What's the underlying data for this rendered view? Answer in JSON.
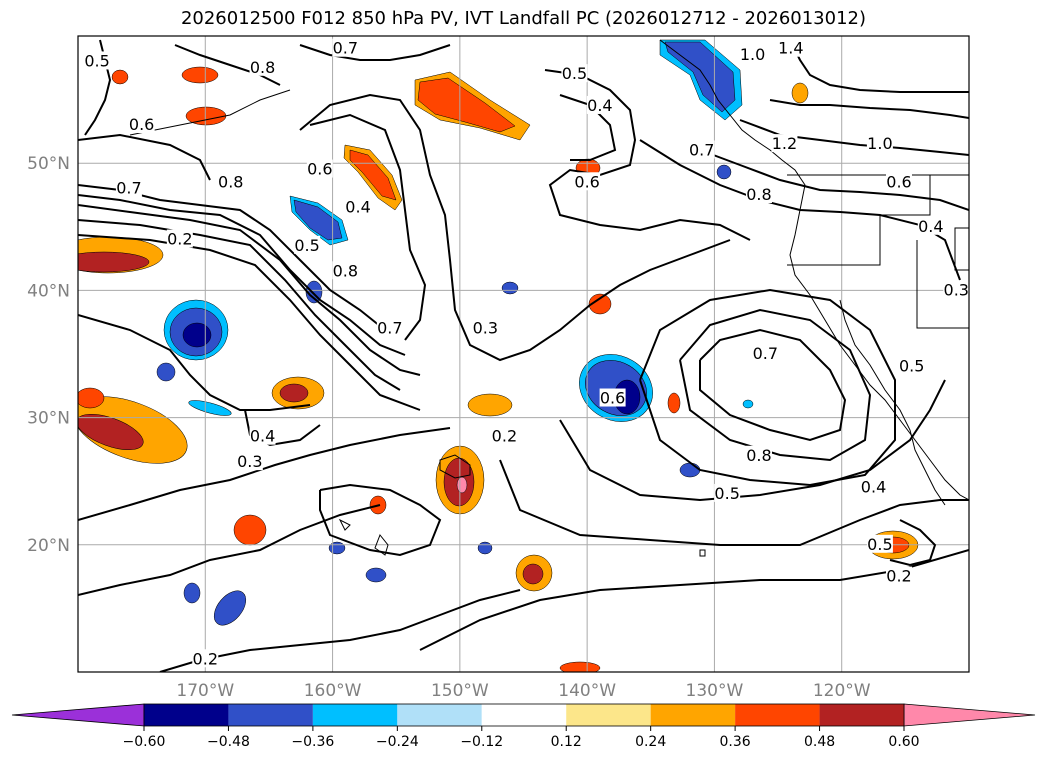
{
  "title": "2026012500 F012 850 hPa PV, IVT Landfall PC (2026012712 - 2026013012)",
  "map": {
    "lon_range": [
      -180,
      -110
    ],
    "lat_range": [
      10,
      60
    ],
    "lon_ticks": [
      {
        "lon": -170,
        "label": "170°W"
      },
      {
        "lon": -160,
        "label": "160°W"
      },
      {
        "lon": -150,
        "label": "150°W"
      },
      {
        "lon": -140,
        "label": "140°W"
      },
      {
        "lon": -130,
        "label": "130°W"
      },
      {
        "lon": -120,
        "label": "120°W"
      }
    ],
    "lat_ticks": [
      {
        "lat": 20,
        "label": "20°N"
      },
      {
        "lat": 30,
        "label": "30°N"
      },
      {
        "lat": 40,
        "label": "40°N"
      },
      {
        "lat": 50,
        "label": "50°N"
      }
    ],
    "grid": true,
    "contour_labels": [
      {
        "lon": -178.5,
        "lat": 58,
        "text": "0.5"
      },
      {
        "lon": -175,
        "lat": 53,
        "text": "0.6"
      },
      {
        "lon": -176,
        "lat": 48,
        "text": "0.7"
      },
      {
        "lon": -172,
        "lat": 44,
        "text": "0.2"
      },
      {
        "lon": -168,
        "lat": 48.5,
        "text": "0.8"
      },
      {
        "lon": -165.5,
        "lat": 57.5,
        "text": "0.8"
      },
      {
        "lon": -159,
        "lat": 59,
        "text": "0.7"
      },
      {
        "lon": -161,
        "lat": 49.5,
        "text": "0.6"
      },
      {
        "lon": -158,
        "lat": 46.5,
        "text": "0.4"
      },
      {
        "lon": -162,
        "lat": 43.5,
        "text": "0.5"
      },
      {
        "lon": -159,
        "lat": 41.5,
        "text": "0.8"
      },
      {
        "lon": -155.5,
        "lat": 37,
        "text": "0.7"
      },
      {
        "lon": -148,
        "lat": 37,
        "text": "0.3"
      },
      {
        "lon": -165.5,
        "lat": 28.5,
        "text": "0.4"
      },
      {
        "lon": -166.5,
        "lat": 26.5,
        "text": "0.3"
      },
      {
        "lon": -146.5,
        "lat": 28.5,
        "text": "0.2"
      },
      {
        "lon": -141,
        "lat": 57,
        "text": "0.5"
      },
      {
        "lon": -139,
        "lat": 54.5,
        "text": "0.4"
      },
      {
        "lon": -140,
        "lat": 48.5,
        "text": "0.6"
      },
      {
        "lon": -138,
        "lat": 31.5,
        "text": "0.6"
      },
      {
        "lon": -131,
        "lat": 51,
        "text": "0.7"
      },
      {
        "lon": -127,
        "lat": 58.5,
        "text": "1.0"
      },
      {
        "lon": -124,
        "lat": 59,
        "text": "1.4"
      },
      {
        "lon": -124.5,
        "lat": 51.5,
        "text": "1.2"
      },
      {
        "lon": -126.5,
        "lat": 47.5,
        "text": "0.8"
      },
      {
        "lon": -117,
        "lat": 51.5,
        "text": "1.0"
      },
      {
        "lon": -115.5,
        "lat": 48.5,
        "text": "0.6"
      },
      {
        "lon": -113,
        "lat": 45,
        "text": "0.4"
      },
      {
        "lon": -111,
        "lat": 40,
        "text": "0.3"
      },
      {
        "lon": -114.5,
        "lat": 34,
        "text": "0.5"
      },
      {
        "lon": -126,
        "lat": 35,
        "text": "0.7"
      },
      {
        "lon": -126.5,
        "lat": 27,
        "text": "0.8"
      },
      {
        "lon": -129,
        "lat": 24,
        "text": "0.5"
      },
      {
        "lon": -117.5,
        "lat": 24.5,
        "text": "0.4"
      },
      {
        "lon": -117,
        "lat": 20,
        "text": "0.5"
      },
      {
        "lon": -115.5,
        "lat": 17.5,
        "text": "0.2"
      },
      {
        "lon": -170,
        "lat": 11,
        "text": "0.2"
      }
    ]
  },
  "colorbar": {
    "ticks": [
      "−0.60",
      "−0.48",
      "−0.36",
      "−0.24",
      "−0.12",
      "0.12",
      "0.24",
      "0.36",
      "0.48",
      "0.60"
    ],
    "colors": [
      "#9b30d9",
      "#00008b",
      "#3050c8",
      "#00bfff",
      "#b0e0f8",
      "#ffffff",
      "#fce68a",
      "#ffa500",
      "#ff4500",
      "#b22222",
      "#ff88aa"
    ]
  },
  "fill_colors": {
    "neg_dark": "#00008b",
    "neg_mid": "#3050c8",
    "neg_light": "#00bfff",
    "neg_pale": "#b0e0f8",
    "pos_pale": "#fce68a",
    "pos_orange": "#ffa500",
    "pos_red": "#ff4500",
    "pos_dark": "#b22222",
    "pos_pink": "#ff88aa"
  }
}
